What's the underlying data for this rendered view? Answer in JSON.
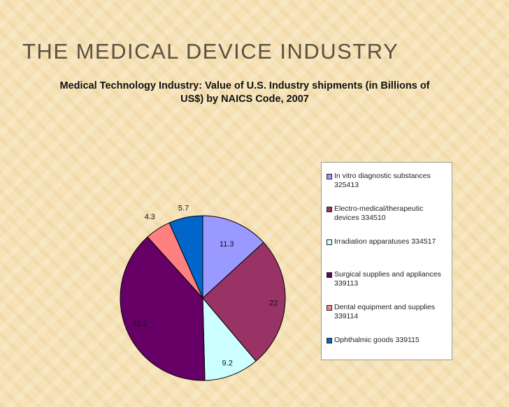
{
  "slide": {
    "title": "THE MEDICAL DEVICE INDUSTRY"
  },
  "chart_data": {
    "type": "pie",
    "title_line1": "Medical Technology Industry: Value of U.S. Industry shipments (in Billions of",
    "title_line2": "US$) by NAICS Code, 2007",
    "slices": [
      {
        "label": "In vitro diagnostic substances",
        "code": "325413",
        "value": 11.3,
        "value_label": "11.3",
        "color": "#9999ff"
      },
      {
        "label": "Electro-medical/therapeutic devices",
        "code": "334510",
        "value": 22,
        "value_label": "22",
        "color": "#993366"
      },
      {
        "label": "Irradiation apparatuses",
        "code": "334517",
        "value": 9.2,
        "value_label": "9.2",
        "color": "#ffffcc"
      },
      {
        "label": "Surgical supplies and appliances",
        "code": "339113",
        "value": 33.2,
        "value_label": "33.2",
        "color": "#660066"
      },
      {
        "label": "Dental equipment and supplies",
        "code": "339114",
        "value": 4.3,
        "value_label": "4.3",
        "color": "#ff8080"
      },
      {
        "label": "Ophthalmic goods",
        "code": "339115",
        "value": 5.7,
        "value_label": "5.7",
        "color": "#0066cc"
      }
    ],
    "third_slice_override_color": "#ccffff",
    "legend_position": "right"
  },
  "legend": {
    "items": [
      {
        "line1": "In vitro diagnostic substances",
        "line2": "325413"
      },
      {
        "line1": "Electro-medical/therapeutic",
        "line2": "devices 334510"
      },
      {
        "line1": "Irradiation apparatuses 334517",
        "line2": ""
      },
      {
        "line1": "Surgical supplies and appliances",
        "line2": "339113"
      },
      {
        "line1": "Dental equipment and supplies",
        "line2": "339114"
      },
      {
        "line1": "Ophthalmic goods 339115",
        "line2": ""
      }
    ]
  }
}
